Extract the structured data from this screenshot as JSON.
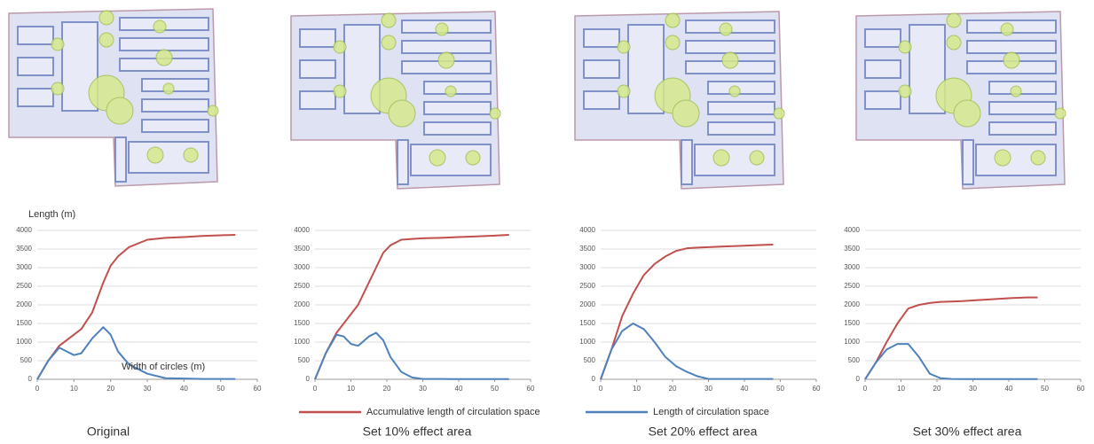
{
  "chart_data": [
    {
      "type": "line",
      "caption": "Original",
      "ylabel": "Length (m)",
      "xlabel": "Width of circles (m)",
      "x": [
        0,
        3,
        6,
        8,
        10,
        12,
        15,
        18,
        20,
        22,
        25,
        30,
        35,
        40,
        45,
        50,
        54
      ],
      "series": [
        {
          "name": "Accumulative length of circulation space",
          "color": "#c0504d",
          "values": [
            0,
            500,
            900,
            1050,
            1200,
            1350,
            1800,
            2600,
            3050,
            3300,
            3550,
            3750,
            3800,
            3820,
            3850,
            3870,
            3880
          ]
        },
        {
          "name": "Length of circulation space",
          "color": "#4f81bd",
          "values": [
            0,
            500,
            850,
            750,
            650,
            700,
            1100,
            1400,
            1200,
            750,
            400,
            150,
            30,
            20,
            10,
            10,
            10
          ]
        }
      ],
      "xlim": [
        0,
        60
      ],
      "xticks": [
        0,
        10,
        20,
        30,
        40,
        50,
        60
      ],
      "ylim": [
        0,
        4000
      ],
      "yticks": [
        0,
        500,
        1000,
        1500,
        2000,
        2500,
        3000,
        3500,
        4000
      ],
      "grid": true
    },
    {
      "type": "line",
      "caption": "Set 10% effect area",
      "x": [
        0,
        3,
        6,
        8,
        10,
        12,
        15,
        17,
        19,
        21,
        24,
        27,
        30,
        35,
        40,
        45,
        50,
        54
      ],
      "series": [
        {
          "color": "#c0504d",
          "values": [
            0,
            700,
            1250,
            1500,
            1750,
            2000,
            2600,
            3000,
            3400,
            3600,
            3750,
            3770,
            3790,
            3800,
            3820,
            3840,
            3860,
            3880
          ]
        },
        {
          "color": "#4f81bd",
          "values": [
            0,
            700,
            1200,
            1150,
            950,
            900,
            1150,
            1250,
            1050,
            600,
            200,
            50,
            10,
            10,
            5,
            5,
            5,
            5
          ]
        }
      ],
      "xlim": [
        0,
        60
      ],
      "xticks": [
        0,
        10,
        20,
        30,
        40,
        50,
        60
      ],
      "ylim": [
        0,
        4000
      ],
      "yticks": [
        0,
        500,
        1000,
        1500,
        2000,
        2500,
        3000,
        3500,
        4000
      ],
      "grid": true
    },
    {
      "type": "line",
      "caption": "Set 20% effect area",
      "x": [
        0,
        3,
        6,
        9,
        12,
        15,
        18,
        21,
        24,
        27,
        30,
        35,
        40,
        45,
        48
      ],
      "series": [
        {
          "color": "#c0504d",
          "values": [
            0,
            800,
            1700,
            2300,
            2800,
            3100,
            3300,
            3450,
            3520,
            3540,
            3550,
            3570,
            3590,
            3610,
            3620
          ]
        },
        {
          "color": "#4f81bd",
          "values": [
            0,
            800,
            1300,
            1500,
            1350,
            1000,
            600,
            350,
            200,
            80,
            10,
            10,
            10,
            10,
            10
          ]
        }
      ],
      "xlim": [
        0,
        60
      ],
      "xticks": [
        0,
        10,
        20,
        30,
        40,
        50,
        60
      ],
      "ylim": [
        0,
        4000
      ],
      "yticks": [
        0,
        500,
        1000,
        1500,
        2000,
        2500,
        3000,
        3500,
        4000
      ],
      "grid": true
    },
    {
      "type": "line",
      "caption": "Set 30% effect area",
      "x": [
        0,
        3,
        6,
        9,
        12,
        15,
        18,
        21,
        24,
        27,
        30,
        35,
        40,
        45,
        48
      ],
      "series": [
        {
          "color": "#c0504d",
          "values": [
            0,
            450,
            1000,
            1500,
            1900,
            2000,
            2050,
            2080,
            2090,
            2100,
            2120,
            2150,
            2180,
            2200,
            2200
          ]
        },
        {
          "color": "#4f81bd",
          "values": [
            0,
            450,
            800,
            950,
            950,
            600,
            150,
            30,
            10,
            5,
            5,
            5,
            5,
            5,
            5
          ]
        }
      ],
      "xlim": [
        0,
        60
      ],
      "xticks": [
        0,
        10,
        20,
        30,
        40,
        50,
        60
      ],
      "ylim": [
        0,
        4000
      ],
      "yticks": [
        0,
        500,
        1000,
        1500,
        2000,
        2500,
        3000,
        3500,
        4000
      ],
      "grid": true
    }
  ]
}
